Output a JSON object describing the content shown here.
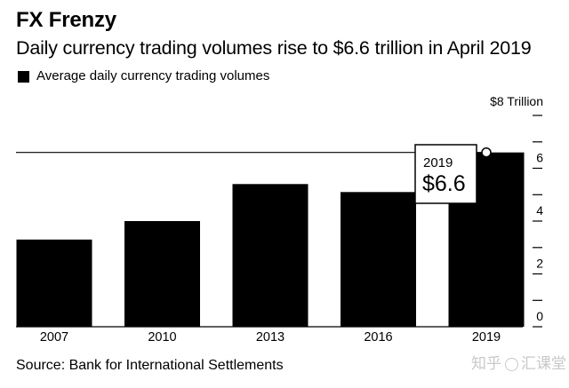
{
  "header": {
    "title": "FX Frenzy",
    "subtitle": "Daily currency trading volumes rise to $6.6 trillion in April 2019"
  },
  "legend": {
    "label": "Average daily currency trading volumes"
  },
  "colors": {
    "bar": "#000000",
    "background": "#ffffff",
    "callout_border": "#000000",
    "watermark": "#c8c8c8"
  },
  "callout": {
    "year": "2019",
    "value": "$6.6"
  },
  "footer": {
    "source": "Source: Bank for International Settlements"
  },
  "watermark": {
    "brand": "知乎",
    "handle": "汇课堂",
    "icon": "at-circle-icon"
  },
  "chart_data": {
    "type": "bar",
    "title": "FX Frenzy",
    "subtitle": "Daily currency trading volumes rise to $6.6 trillion in April 2019",
    "categories": [
      "2007",
      "2010",
      "2013",
      "2016",
      "2019"
    ],
    "series": [
      {
        "name": "Average daily currency trading volumes",
        "values": [
          3.3,
          4.0,
          5.4,
          5.1,
          6.6
        ]
      }
    ],
    "unit_label": "$8 Trillion",
    "ylim": [
      0,
      8
    ],
    "yticks": [
      0,
      1,
      2,
      3,
      4,
      5,
      6,
      7,
      8
    ],
    "ytick_labels": [
      "0",
      "",
      "2",
      "",
      "4",
      "",
      "6",
      "",
      ""
    ],
    "reference_line": 6.6,
    "xlabel": "",
    "ylabel": "",
    "grid": false,
    "legend_position": "top-left"
  }
}
